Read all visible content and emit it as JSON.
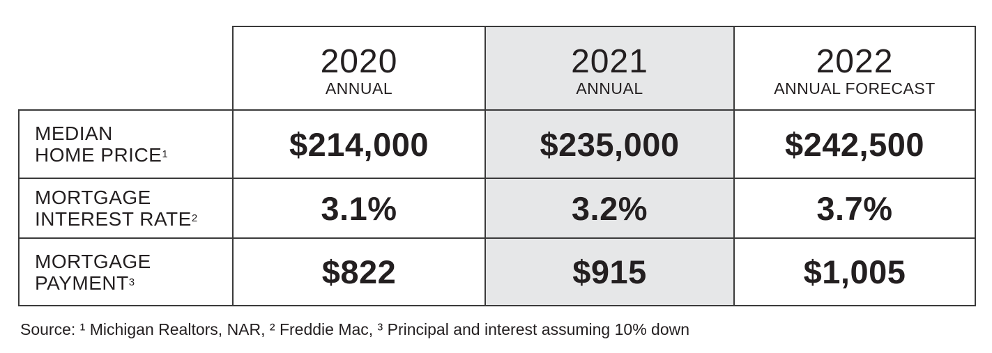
{
  "table": {
    "columns": [
      {
        "year": "2020",
        "label": "ANNUAL"
      },
      {
        "year": "2021",
        "label": "ANNUAL"
      },
      {
        "year": "2022",
        "label": "ANNUAL FORECAST"
      }
    ],
    "rows": [
      {
        "label_line1": "MEDIAN",
        "label_line2": "HOME PRICE",
        "footnote": "1",
        "values": [
          "$214,000",
          "$235,000",
          "$242,500"
        ]
      },
      {
        "label_line1": "MORTGAGE",
        "label_line2": "INTEREST RATE",
        "footnote": "2",
        "values": [
          "3.1%",
          "3.2%",
          "3.7%"
        ]
      },
      {
        "label_line1": "MORTGAGE",
        "label_line2": "PAYMENT",
        "footnote": "3",
        "values": [
          "$822",
          "$915",
          "$1,005"
        ]
      }
    ],
    "highlight_color": "#e6e7e8",
    "border_color": "#3a3a3a",
    "text_color": "#231f20"
  },
  "source": "Source: ¹ Michigan Realtors, NAR, ² Freddie Mac, ³ Principal and interest assuming 10% down",
  "chart_data": {
    "type": "table",
    "columns": [
      "2020 ANNUAL",
      "2021 ANNUAL",
      "2022 ANNUAL FORECAST"
    ],
    "rows": [
      {
        "name": "MEDIAN HOME PRICE¹",
        "values": [
          214000,
          235000,
          242500
        ]
      },
      {
        "name": "MORTGAGE INTEREST RATE²",
        "values": [
          3.1,
          3.2,
          3.7
        ]
      },
      {
        "name": "MORTGAGE PAYMENT³",
        "values": [
          822,
          915,
          1005
        ]
      }
    ]
  }
}
